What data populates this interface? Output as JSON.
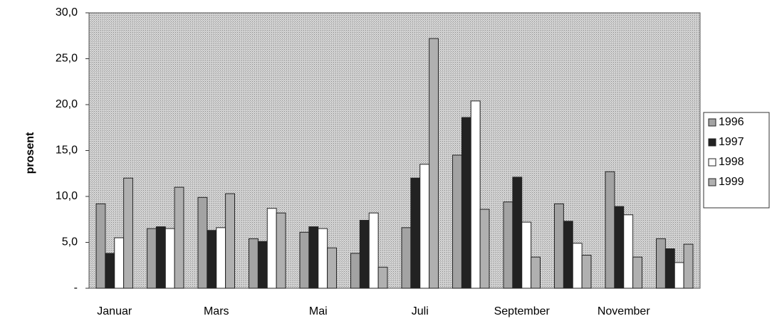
{
  "chart_data": {
    "type": "bar",
    "y_label": "prosent",
    "categories": [
      "Januar",
      null,
      "Mars",
      null,
      "Mai",
      null,
      "Juli",
      null,
      "September",
      null,
      "November",
      null
    ],
    "series": [
      {
        "name": "1996",
        "color": "#a3a3a3",
        "values": [
          9.2,
          6.5,
          9.9,
          5.4,
          6.1,
          3.8,
          6.6,
          14.5,
          9.4,
          9.2,
          12.7,
          5.4
        ]
      },
      {
        "name": "1997",
        "color": "#222222",
        "values": [
          3.8,
          6.7,
          6.3,
          5.1,
          6.7,
          7.4,
          12.0,
          18.6,
          12.1,
          7.3,
          8.9,
          4.3
        ]
      },
      {
        "name": "1998",
        "color": "#ffffff",
        "values": [
          5.5,
          6.5,
          6.6,
          8.7,
          6.5,
          8.2,
          13.5,
          20.4,
          7.2,
          4.9,
          8.0,
          2.8
        ]
      },
      {
        "name": "1999",
        "color": "#b0b0b0",
        "values": [
          12.0,
          11.0,
          10.3,
          8.2,
          4.4,
          2.3,
          27.2,
          8.6,
          3.4,
          3.6,
          3.4,
          4.8
        ]
      }
    ],
    "ylim": [
      0,
      30
    ],
    "yticks": [
      {
        "value": 0,
        "label": "-"
      },
      {
        "value": 5,
        "label": "5,0"
      },
      {
        "value": 10,
        "label": "10,0"
      },
      {
        "value": 15,
        "label": "15,0"
      },
      {
        "value": 20,
        "label": "20,0"
      },
      {
        "value": 25,
        "label": "25,0"
      },
      {
        "value": 30,
        "label": "30,0"
      }
    ],
    "grid": false,
    "legend": "right"
  }
}
